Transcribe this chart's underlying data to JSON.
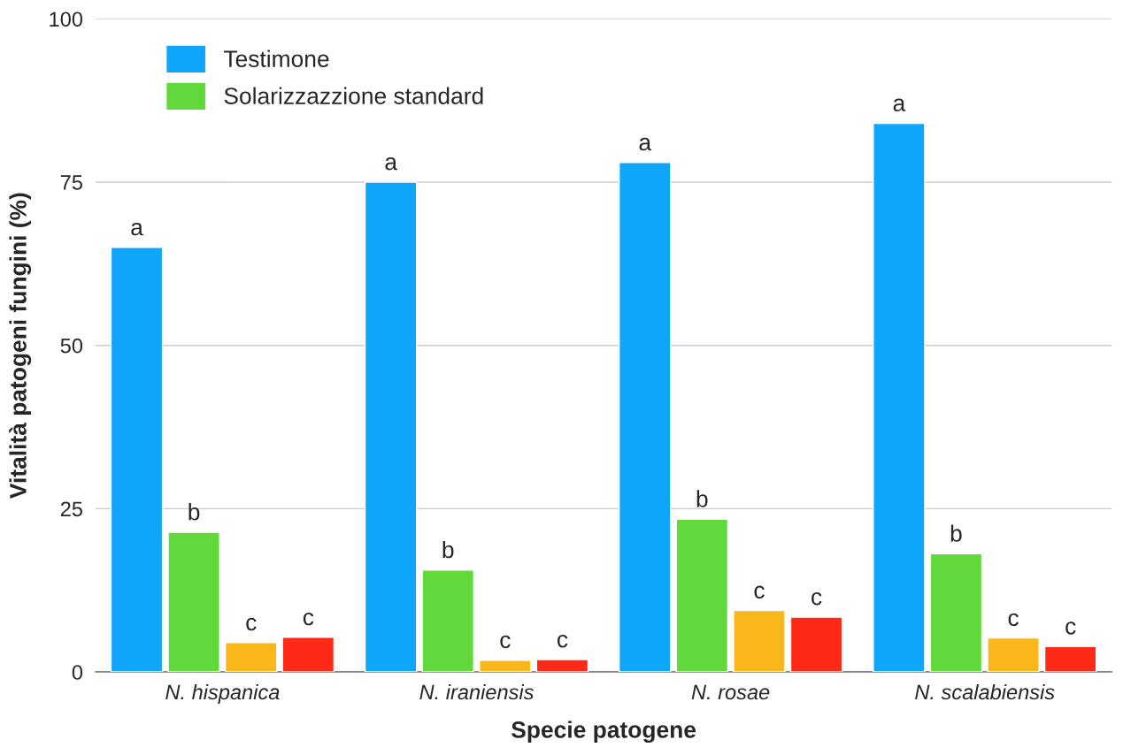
{
  "chart_data": {
    "type": "bar",
    "xlabel": "Specie patogene",
    "ylabel": "Vitalità patogeni fungini (%)",
    "categories": [
      "N. hispanica",
      "N. iraniensis",
      "N. rosae",
      "N. scalabiensis"
    ],
    "series": [
      {
        "name": "Testimone",
        "color": "#0ea5fb",
        "values": [
          65,
          75,
          78,
          84
        ],
        "value_labels": [
          "a",
          "a",
          "a",
          "a"
        ]
      },
      {
        "name": "Solarizzazzione standard",
        "color": "#62d93a",
        "values": [
          21.4,
          15.6,
          23.4,
          18.1
        ],
        "value_labels": [
          "b",
          "b",
          "b",
          "b"
        ]
      },
      {
        "color": "#f9b71c",
        "values": [
          4.5,
          1.8,
          9.4,
          5.2
        ],
        "value_labels": [
          "c",
          "c",
          "c",
          "c"
        ]
      },
      {
        "color": "#fe2a17",
        "values": [
          5.3,
          1.9,
          8.4,
          3.9
        ],
        "value_labels": [
          "c",
          "c",
          "c",
          "c"
        ]
      }
    ],
    "ylim": [
      0,
      100
    ],
    "yticks": [
      0,
      25,
      50,
      75,
      100
    ],
    "grid": "y",
    "legend": "top left"
  }
}
